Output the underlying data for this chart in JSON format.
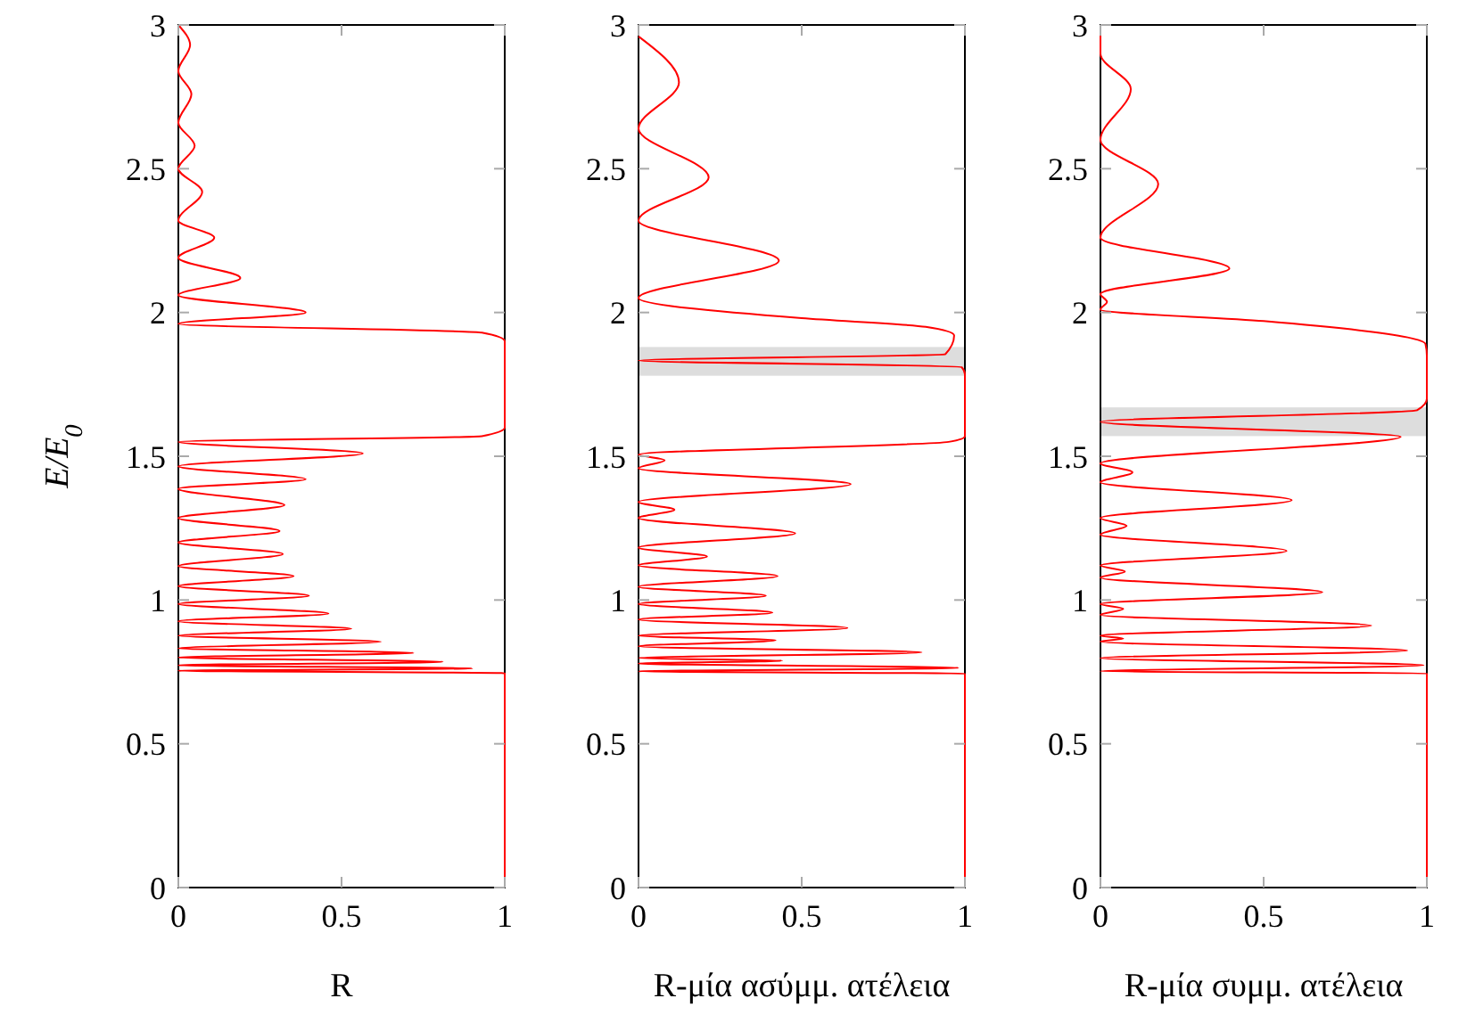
{
  "chart_data": [
    {
      "type": "line",
      "xlabel": "R",
      "ylabel": "E/E$_{0}$",
      "xlim": [
        0,
        1
      ],
      "ylim": [
        0,
        3
      ],
      "xticks": [
        0,
        0.5,
        1
      ],
      "yticks": [
        0,
        0.5,
        1,
        1.5,
        2,
        2.5,
        3
      ],
      "series": [
        {
          "color": "#ff0000",
          "x": [
            1,
            1,
            0.99,
            0,
            0.9,
            0,
            0.81,
            0,
            0.72,
            0,
            0.62,
            0,
            0.53,
            0,
            0.46,
            0,
            0.4,
            0,
            0.353,
            0,
            0.32,
            0,
            0.31,
            0,
            0.325,
            0,
            0.39,
            0,
            0.565,
            0,
            0.93,
            1,
            1,
            0.93,
            0,
            0.39,
            0,
            0.19,
            0,
            0.11,
            0,
            0.073,
            0,
            0.05,
            0,
            0.04,
            0,
            0.036,
            0
          ],
          "values": [
            0,
            0.745,
            0.746,
            0.754,
            0.762,
            0.773,
            0.785,
            0.8,
            0.816,
            0.832,
            0.855,
            0.876,
            0.9,
            0.926,
            0.953,
            0.986,
            1.015,
            1.048,
            1.083,
            1.118,
            1.16,
            1.2,
            1.24,
            1.285,
            1.33,
            1.387,
            1.42,
            1.465,
            1.51,
            1.55,
            1.57,
            1.6,
            1.9,
            1.93,
            1.96,
            2.0,
            2.06,
            2.12,
            2.19,
            2.26,
            2.32,
            2.42,
            2.5,
            2.58,
            2.66,
            2.76,
            2.84,
            2.93,
            3.0
          ]
        }
      ]
    },
    {
      "type": "line",
      "xlabel": "R-μία ασύμμ. ατέλεια",
      "xlim": [
        0,
        1
      ],
      "ylim": [
        0,
        3
      ],
      "xticks": [
        0,
        0.5,
        1
      ],
      "yticks": [
        0,
        0.5,
        1,
        1.5,
        2,
        2.5,
        3
      ],
      "bands": [
        {
          "axis": "y",
          "from": 1.78,
          "to": 1.88,
          "color": "#dddddd"
        }
      ],
      "series": [
        {
          "color": "#ff0000",
          "x": [
            1,
            1,
            0,
            0.98,
            0,
            0.44,
            0,
            0.867,
            0,
            0.42,
            0,
            0.64,
            0,
            0.41,
            0,
            0.39,
            0,
            0.426,
            0,
            0.21,
            0,
            0.48,
            0,
            0.11,
            0,
            0.65,
            0,
            0.08,
            0,
            0.95,
            1,
            1,
            0.99,
            0,
            0.94,
            0.967,
            0.88,
            0.5,
            0,
            0.43,
            0,
            0.215,
            0,
            0.124,
            0
          ],
          "values": [
            0,
            0.744,
            0.752,
            0.764,
            0.779,
            0.789,
            0.798,
            0.818,
            0.839,
            0.86,
            0.876,
            0.903,
            0.932,
            0.956,
            0.986,
            1.015,
            1.046,
            1.083,
            1.12,
            1.151,
            1.182,
            1.232,
            1.285,
            1.314,
            1.341,
            1.403,
            1.458,
            1.486,
            1.506,
            1.55,
            1.57,
            1.785,
            1.81,
            1.833,
            1.855,
            1.92,
            1.95,
            1.98,
            2.05,
            2.18,
            2.32,
            2.47,
            2.64,
            2.8,
            2.96
          ]
        }
      ]
    },
    {
      "type": "line",
      "xlabel": "R-μία συμμ. ατέλεια",
      "xlim": [
        0,
        1
      ],
      "ylim": [
        0,
        3
      ],
      "xticks": [
        0,
        0.5,
        1
      ],
      "yticks": [
        0,
        0.5,
        1,
        1.5,
        2,
        2.5,
        3
      ],
      "bands": [
        {
          "axis": "y",
          "from": 1.57,
          "to": 1.67,
          "color": "#dddddd"
        }
      ],
      "series": [
        {
          "color": "#ff0000",
          "x": [
            1,
            1,
            0,
            0.99,
            0,
            0.94,
            0,
            0.07,
            0,
            0.83,
            0,
            0.07,
            0,
            0.68,
            0,
            0.075,
            0,
            0.57,
            0,
            0.08,
            0,
            0.586,
            0,
            0.098,
            0,
            0.92,
            0,
            0.97,
            1,
            1,
            0.996,
            0.5,
            0,
            0.02,
            0,
            0.395,
            0,
            0.177,
            0,
            0.093,
            0,
            0
          ],
          "values": [
            0,
            0.745,
            0.752,
            0.773,
            0.798,
            0.824,
            0.855,
            0.866,
            0.876,
            0.911,
            0.948,
            0.969,
            0.986,
            1.027,
            1.078,
            1.099,
            1.12,
            1.171,
            1.227,
            1.258,
            1.285,
            1.347,
            1.409,
            1.444,
            1.475,
            1.568,
            1.62,
            1.66,
            1.7,
            1.85,
            1.89,
            1.97,
            2.01,
            2.037,
            2.064,
            2.153,
            2.26,
            2.447,
            2.6,
            2.777,
            2.9,
            3.0
          ]
        }
      ]
    }
  ]
}
